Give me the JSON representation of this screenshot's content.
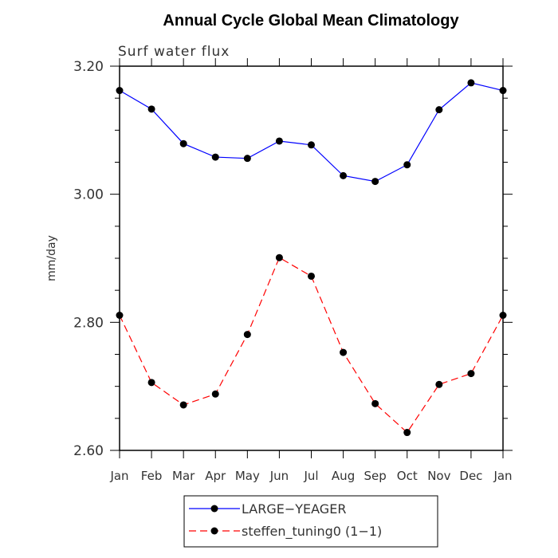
{
  "chart_data": {
    "type": "line",
    "title": "Annual Cycle Global Mean Climatology",
    "subtitle": "Surf water flux",
    "xlabel": "",
    "ylabel": "mm/day",
    "ylim": [
      2.6,
      3.2
    ],
    "yticks": [
      "2.60",
      "2.80",
      "3.00",
      "3.20"
    ],
    "categories": [
      "Jan",
      "Feb",
      "Mar",
      "Apr",
      "May",
      "Jun",
      "Jul",
      "Aug",
      "Sep",
      "Oct",
      "Nov",
      "Dec",
      "Jan"
    ],
    "series": [
      {
        "name": "LARGE−YEAGER",
        "color": "#0000ff",
        "dash": "solid",
        "values": [
          3.162,
          3.133,
          3.079,
          3.058,
          3.056,
          3.083,
          3.077,
          3.029,
          3.02,
          3.046,
          3.132,
          3.174,
          3.162
        ]
      },
      {
        "name": "steffen_tuning0 (1−1)",
        "color": "#ff0000",
        "dash": "dashed",
        "values": [
          2.811,
          2.706,
          2.671,
          2.688,
          2.781,
          2.901,
          2.872,
          2.753,
          2.673,
          2.628,
          2.703,
          2.72,
          2.811
        ]
      }
    ],
    "grid": false,
    "legend_position": "bottom"
  }
}
